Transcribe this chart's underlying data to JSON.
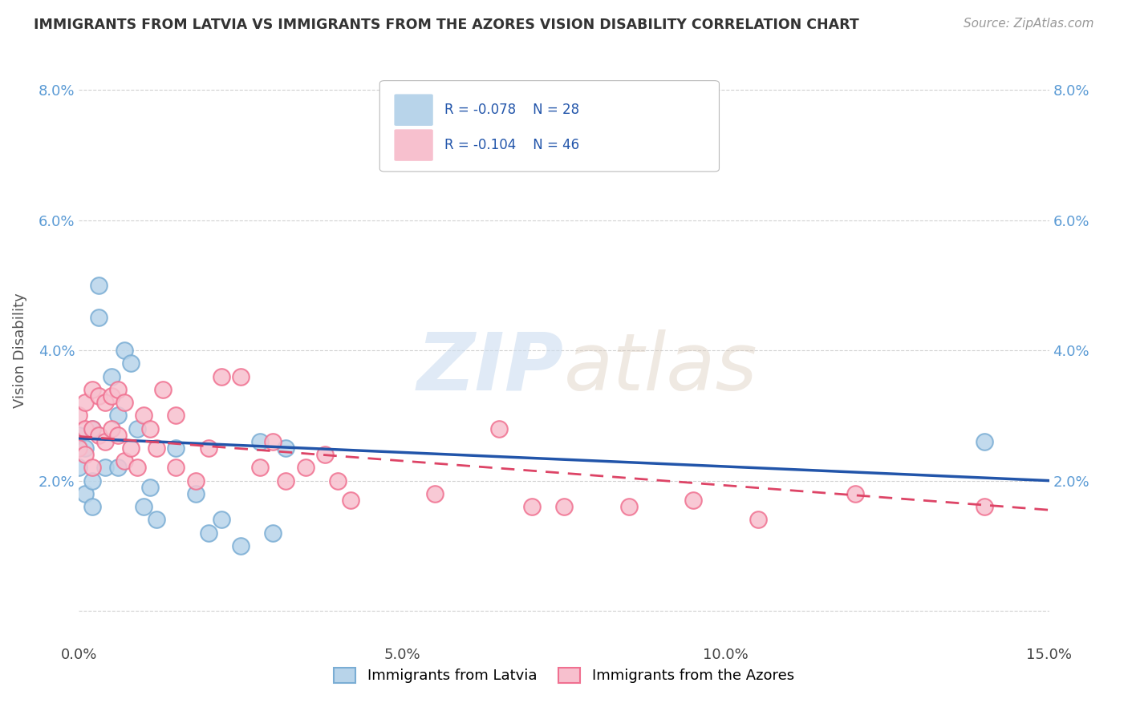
{
  "title": "IMMIGRANTS FROM LATVIA VS IMMIGRANTS FROM THE AZORES VISION DISABILITY CORRELATION CHART",
  "source": "Source: ZipAtlas.com",
  "ylabel": "Vision Disability",
  "xlabel": "",
  "legend_label1": "Immigrants from Latvia",
  "legend_label2": "Immigrants from the Azores",
  "r1": -0.078,
  "n1": 28,
  "r2": -0.104,
  "n2": 46,
  "color1_face": "#b8d4ea",
  "color1_edge": "#7aadd4",
  "color2_face": "#f7c0ce",
  "color2_edge": "#f07090",
  "line_color1": "#2255aa",
  "line_color2": "#dd4466",
  "watermark_color": "#ddeeff",
  "xlim": [
    0.0,
    0.15
  ],
  "ylim": [
    -0.005,
    0.085
  ],
  "ytick_positions": [
    0.0,
    0.02,
    0.04,
    0.06,
    0.08
  ],
  "ytick_labels": [
    "",
    "2.0%",
    "4.0%",
    "6.0%",
    "8.0%"
  ],
  "xtick_positions": [
    0.0,
    0.05,
    0.1,
    0.15
  ],
  "xtick_labels": [
    "0.0%",
    "5.0%",
    "10.0%",
    "15.0%"
  ],
  "latvia_x": [
    0.0,
    0.0,
    0.001,
    0.001,
    0.002,
    0.002,
    0.002,
    0.003,
    0.003,
    0.004,
    0.005,
    0.006,
    0.006,
    0.007,
    0.008,
    0.009,
    0.01,
    0.011,
    0.012,
    0.015,
    0.018,
    0.022,
    0.028,
    0.032,
    0.02,
    0.025,
    0.03,
    0.14
  ],
  "latvia_y": [
    0.027,
    0.022,
    0.025,
    0.018,
    0.028,
    0.02,
    0.016,
    0.05,
    0.045,
    0.022,
    0.036,
    0.03,
    0.022,
    0.04,
    0.038,
    0.028,
    0.016,
    0.019,
    0.014,
    0.025,
    0.018,
    0.014,
    0.026,
    0.025,
    0.012,
    0.01,
    0.012,
    0.026
  ],
  "azores_x": [
    0.0,
    0.0,
    0.001,
    0.001,
    0.001,
    0.002,
    0.002,
    0.002,
    0.003,
    0.003,
    0.004,
    0.004,
    0.005,
    0.005,
    0.006,
    0.006,
    0.007,
    0.007,
    0.008,
    0.009,
    0.01,
    0.011,
    0.012,
    0.013,
    0.015,
    0.015,
    0.018,
    0.02,
    0.022,
    0.025,
    0.028,
    0.03,
    0.032,
    0.035,
    0.038,
    0.04,
    0.042,
    0.055,
    0.065,
    0.07,
    0.075,
    0.085,
    0.095,
    0.105,
    0.12,
    0.14
  ],
  "azores_y": [
    0.03,
    0.025,
    0.032,
    0.028,
    0.024,
    0.034,
    0.028,
    0.022,
    0.033,
    0.027,
    0.032,
    0.026,
    0.033,
    0.028,
    0.034,
    0.027,
    0.032,
    0.023,
    0.025,
    0.022,
    0.03,
    0.028,
    0.025,
    0.034,
    0.03,
    0.022,
    0.02,
    0.025,
    0.036,
    0.036,
    0.022,
    0.026,
    0.02,
    0.022,
    0.024,
    0.02,
    0.017,
    0.018,
    0.028,
    0.016,
    0.016,
    0.016,
    0.017,
    0.014,
    0.018,
    0.016
  ]
}
